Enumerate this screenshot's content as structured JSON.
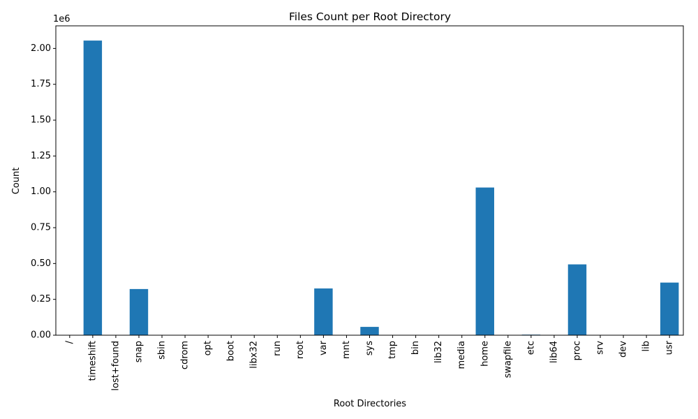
{
  "chart_data": {
    "type": "bar",
    "title": "Files Count per Root Directory",
    "xlabel": "Root Directories",
    "ylabel": "Count",
    "offset_label": "1e6",
    "categories": [
      "/",
      "timeshift",
      "lost+found",
      "snap",
      "sbin",
      "cdrom",
      "opt",
      "boot",
      "libx32",
      "run",
      "root",
      "var",
      "mnt",
      "sys",
      "tmp",
      "bin",
      "lib32",
      "media",
      "home",
      "swapfile",
      "etc",
      "lib64",
      "proc",
      "srv",
      "dev",
      "lib",
      "usr"
    ],
    "values": [
      0,
      2055000,
      0,
      322000,
      0,
      0,
      0,
      0,
      0,
      0,
      0,
      326000,
      0,
      58000,
      0,
      0,
      0,
      0,
      1030000,
      0,
      4000,
      0,
      494000,
      0,
      0,
      0,
      367000
    ],
    "yticks": [
      0,
      250000,
      500000,
      750000,
      1000000,
      1250000,
      1500000,
      1750000,
      2000000
    ],
    "ytick_labels": [
      "0.00",
      "0.25",
      "0.50",
      "0.75",
      "1.00",
      "1.25",
      "1.50",
      "1.75",
      "2.00"
    ],
    "ylim": [
      0,
      2157750
    ],
    "bar_color": "#1f77b4",
    "grid": false,
    "legend": "none"
  }
}
